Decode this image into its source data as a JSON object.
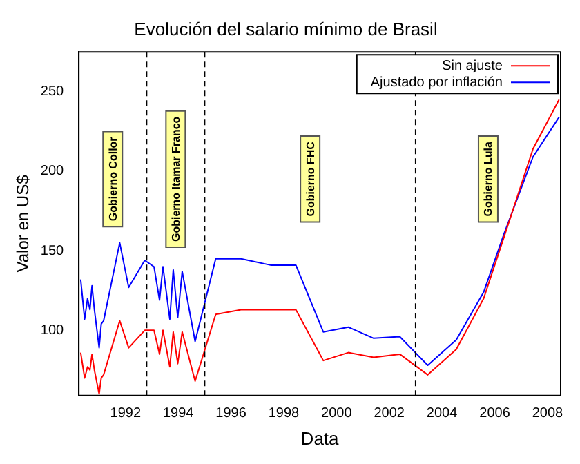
{
  "chart_data": {
    "type": "line",
    "title": "Evolución del salario mínimo de Brasil",
    "xlabel": "Data",
    "ylabel": "Valor en US$",
    "x": [
      1990.3,
      1990.45,
      1990.56,
      1990.65,
      1990.73,
      1990.82,
      1991.0,
      1991.08,
      1991.17,
      1991.78,
      1992.12,
      1992.73,
      1993.08,
      1993.29,
      1993.42,
      1993.68,
      1993.81,
      1993.98,
      1994.15,
      1994.64,
      1995.42,
      1996.38,
      1997.5,
      1998.46,
      1999.5,
      2000.45,
      2001.41,
      2002.4,
      2003.46,
      2004.54,
      2005.58,
      2006.36,
      2007.45,
      2008.44
    ],
    "series": [
      {
        "name": "Sin ajuste",
        "color": "#ff0000",
        "values": [
          86,
          70,
          77,
          75,
          85,
          75,
          60,
          70,
          72,
          106,
          89,
          100,
          100,
          85,
          100,
          77,
          99,
          79,
          99,
          68,
          110,
          113,
          113,
          113,
          81,
          86,
          83,
          85,
          72,
          88,
          120,
          159,
          214,
          245
        ]
      },
      {
        "name": "Ajustado por inflación",
        "color": "#0000ff",
        "values": [
          132,
          107,
          120,
          113,
          128,
          113,
          89,
          104,
          106,
          155,
          127,
          144,
          140,
          119,
          140,
          107,
          138,
          108,
          137,
          93,
          145,
          145,
          141,
          141,
          99,
          102,
          95,
          96,
          78,
          94,
          124,
          161,
          209,
          234
        ]
      }
    ],
    "xlim": [
      1990.23,
      2008.5
    ],
    "ylim": [
      59,
      275
    ],
    "xticks": [
      1992,
      1994,
      1996,
      1998,
      2000,
      2002,
      2004,
      2006,
      2008
    ],
    "yticks": [
      100,
      150,
      200,
      250
    ],
    "legend": "top right",
    "marker": "none",
    "ref_lines": [
      {
        "axis": "x",
        "value": 1992.8,
        "line_style": "dashed",
        "color": "#000000"
      },
      {
        "axis": "x",
        "value": 1995.0,
        "line_style": "dashed",
        "color": "#000000"
      },
      {
        "axis": "x",
        "value": 2003.0,
        "line_style": "dashed",
        "color": "#000000"
      }
    ],
    "annotations": [
      "Gobierno Collor",
      "Gobierno Itamar Franco",
      "Gobierno FHC",
      "Gobierno Lula"
    ]
  }
}
